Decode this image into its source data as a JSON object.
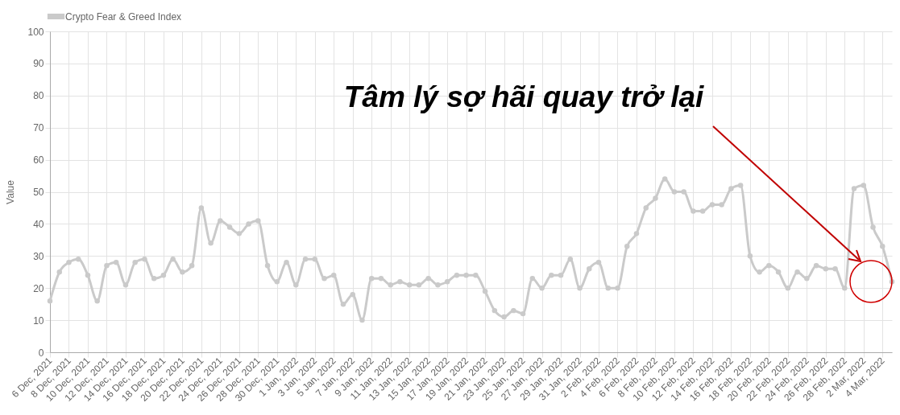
{
  "chart_data": {
    "type": "line",
    "ylabel": "Value",
    "categories": [
      "6 Dec, 2021",
      null,
      "8 Dec, 2021",
      null,
      "10 Dec, 2021",
      null,
      "12 Dec, 2021",
      null,
      "14 Dec, 2021",
      null,
      "16 Dec, 2021",
      null,
      "18 Dec, 2021",
      null,
      "20 Dec, 2021",
      null,
      "22 Dec, 2021",
      null,
      "24 Dec, 2021",
      null,
      "26 Dec, 2021",
      null,
      "28 Dec, 2021",
      null,
      "30 Dec, 2021",
      null,
      "1 Jan, 2022",
      null,
      "3 Jan, 2022",
      null,
      "5 Jan, 2022",
      null,
      "7 Jan, 2022",
      null,
      "9 Jan, 2022",
      null,
      "11 Jan, 2022",
      null,
      "13 Jan, 2022",
      null,
      "15 Jan, 2022",
      null,
      "17 Jan, 2022",
      null,
      "19 Jan, 2022",
      null,
      "21 Jan, 2022",
      null,
      "23 Jan, 2022",
      null,
      "25 Jan, 2022",
      null,
      "27 Jan, 2022",
      null,
      "29 Jan, 2022",
      null,
      "31 Jan, 2022",
      null,
      "2 Feb, 2022",
      null,
      "4 Feb, 2022",
      null,
      "6 Feb, 2022",
      null,
      "8 Feb, 2022",
      null,
      "10 Feb, 2022",
      null,
      "12 Feb, 2022",
      null,
      "14 Feb, 2022",
      null,
      "16 Feb, 2022",
      null,
      "18 Feb, 2022",
      null,
      "20 Feb, 2022",
      null,
      "22 Feb, 2022",
      null,
      "24 Feb, 2022",
      null,
      "26 Feb, 2022",
      null,
      "28 Feb, 2022",
      null,
      "2 Mar, 2022",
      null,
      "4 Mar, 2022",
      null
    ],
    "series": [
      {
        "name": "Crypto Fear & Greed Index",
        "color": "#cacaca",
        "values": [
          16,
          25,
          28,
          29,
          24,
          16,
          27,
          28,
          21,
          28,
          29,
          23,
          24,
          29,
          25,
          27,
          45,
          34,
          41,
          39,
          37,
          40,
          41,
          27,
          22,
          28,
          21,
          29,
          29,
          23,
          24,
          15,
          18,
          10,
          23,
          23,
          21,
          22,
          21,
          21,
          23,
          21,
          22,
          24,
          24,
          24,
          19,
          13,
          11,
          13,
          12,
          23,
          20,
          24,
          24,
          29,
          20,
          26,
          28,
          20,
          20,
          33,
          37,
          45,
          48,
          54,
          50,
          50,
          44,
          44,
          46,
          46,
          51,
          52,
          30,
          25,
          27,
          25,
          20,
          25,
          23,
          27,
          26,
          26,
          20,
          51,
          52,
          39,
          33,
          22
        ]
      }
    ],
    "ylim": [
      0,
      100
    ],
    "yticks": [
      0,
      10,
      20,
      30,
      40,
      50,
      60,
      70,
      80,
      90,
      100
    ],
    "grid": true,
    "legend": "top",
    "marker": "circle",
    "line_style": "solid",
    "annotations": [
      "Tâm lý sợ hãi quay trở lại"
    ]
  }
}
